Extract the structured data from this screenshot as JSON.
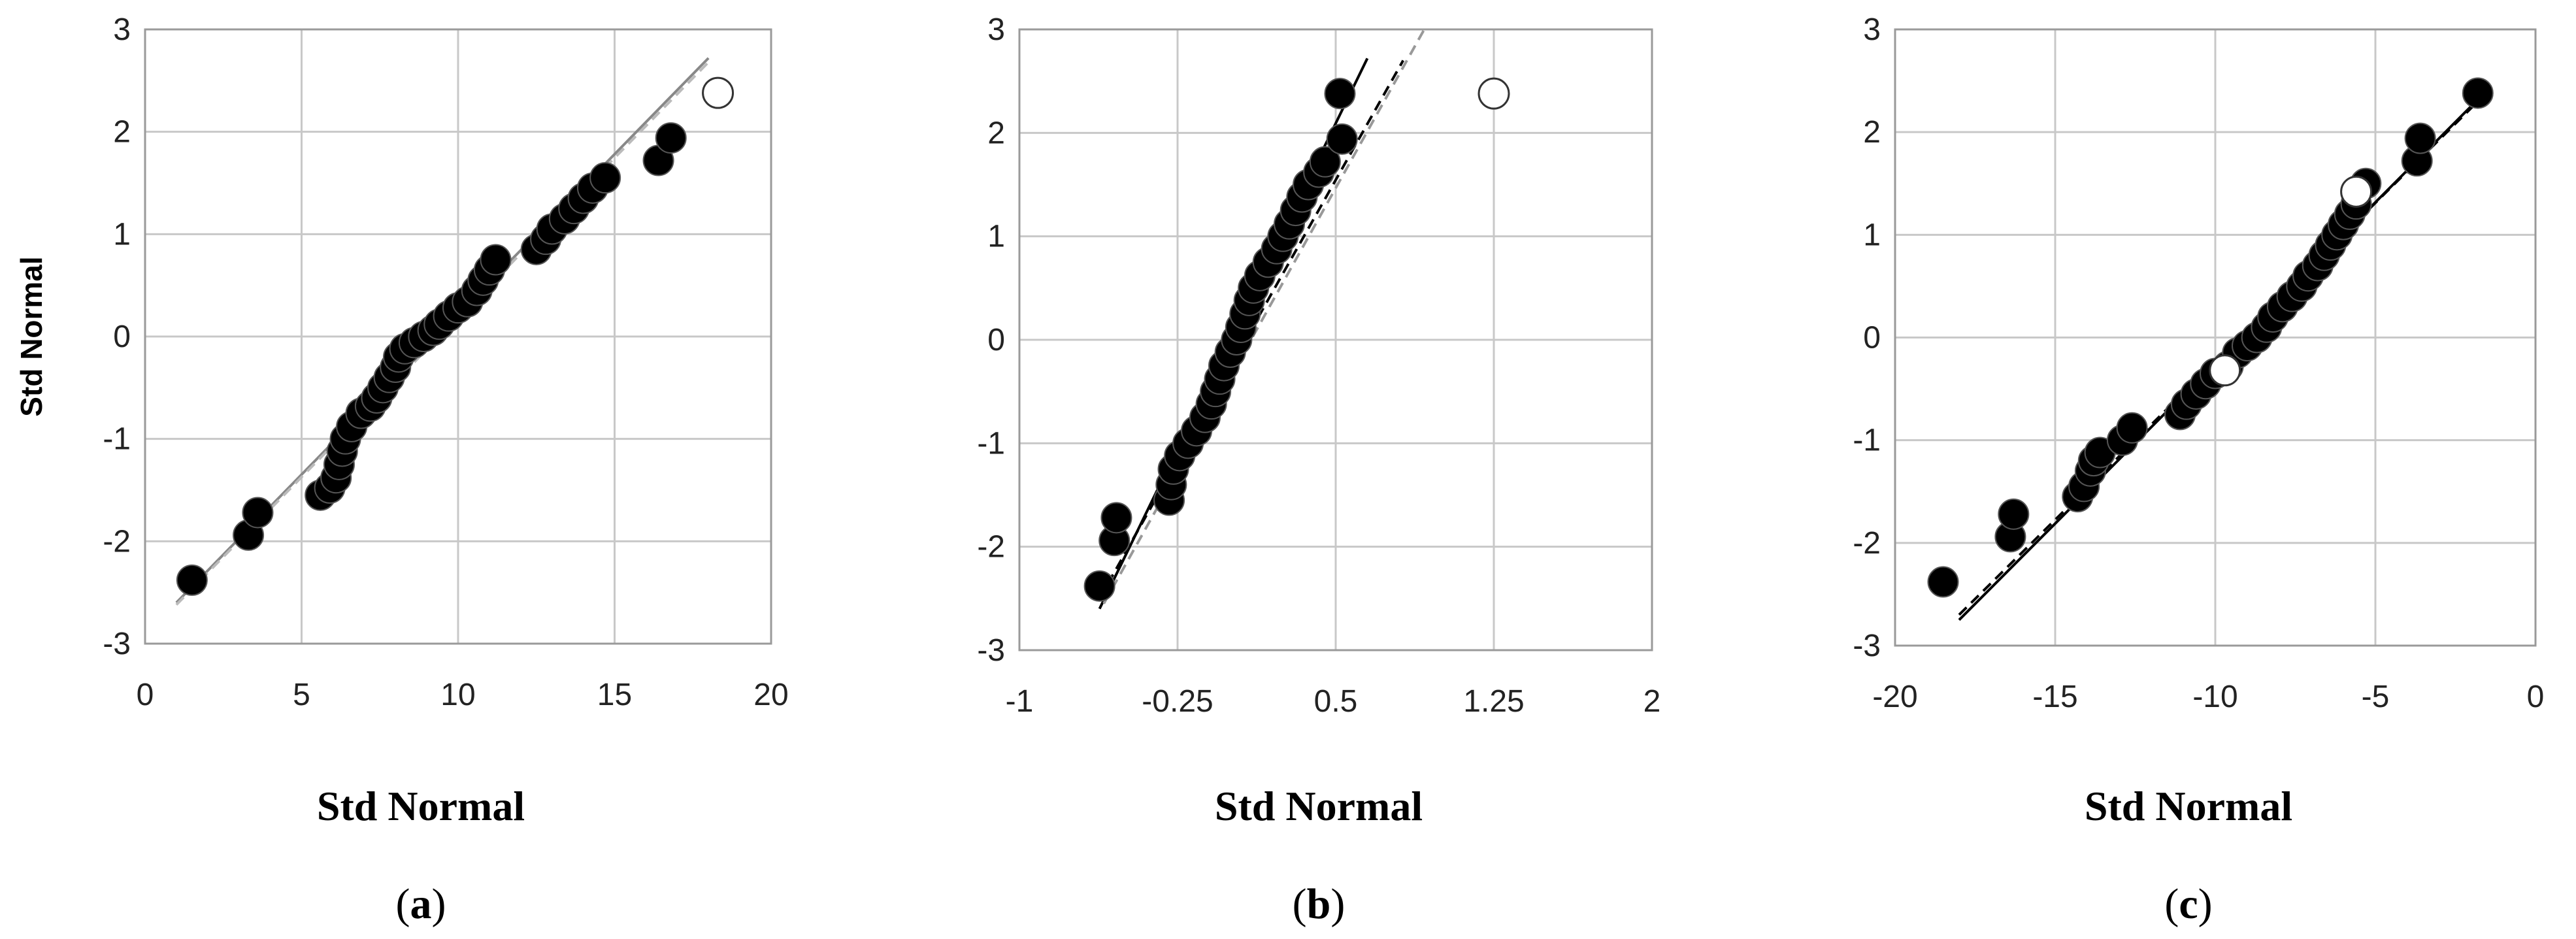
{
  "chart_data": [
    {
      "type": "scatter",
      "panel_label": "a",
      "xlabel": "Std Normal",
      "ylabel": "Std Normal",
      "xlim": [
        0,
        20
      ],
      "ylim": [
        -3,
        3
      ],
      "xticks": [
        "0",
        "5",
        "10",
        "15",
        "20"
      ],
      "yticks": [
        "-3",
        "-2",
        "-1",
        "0",
        "1",
        "2",
        "3"
      ],
      "grid": true,
      "points": [
        [
          1.5,
          -2.38
        ],
        [
          3.3,
          -1.94
        ],
        [
          3.6,
          -1.72
        ],
        [
          5.6,
          -1.55
        ],
        [
          5.9,
          -1.48
        ],
        [
          6.1,
          -1.38
        ],
        [
          6.2,
          -1.25
        ],
        [
          6.3,
          -1.12
        ],
        [
          6.4,
          -1.0
        ],
        [
          6.6,
          -0.88
        ],
        [
          6.9,
          -0.75
        ],
        [
          7.2,
          -0.68
        ],
        [
          7.4,
          -0.6
        ],
        [
          7.6,
          -0.5
        ],
        [
          7.8,
          -0.4
        ],
        [
          8.0,
          -0.3
        ],
        [
          8.1,
          -0.2
        ],
        [
          8.3,
          -0.12
        ],
        [
          8.6,
          -0.06
        ],
        [
          8.9,
          0.0
        ],
        [
          9.2,
          0.06
        ],
        [
          9.4,
          0.12
        ],
        [
          9.7,
          0.2
        ],
        [
          10.0,
          0.28
        ],
        [
          10.3,
          0.34
        ],
        [
          10.6,
          0.45
        ],
        [
          10.8,
          0.55
        ],
        [
          11.0,
          0.65
        ],
        [
          11.2,
          0.75
        ],
        [
          12.5,
          0.85
        ],
        [
          12.8,
          0.95
        ],
        [
          13.0,
          1.05
        ],
        [
          13.4,
          1.15
        ],
        [
          13.7,
          1.25
        ],
        [
          14.0,
          1.35
        ],
        [
          14.3,
          1.45
        ],
        [
          14.7,
          1.55
        ],
        [
          16.4,
          1.72
        ],
        [
          16.8,
          1.94
        ]
      ],
      "open_points": [
        [
          18.3,
          2.38
        ]
      ],
      "fit_lines": [
        {
          "style": "solid",
          "color": "#888888",
          "from": [
            1.0,
            -2.6
          ],
          "to": [
            18.0,
            2.72
          ]
        },
        {
          "style": "dashed",
          "color": "#bbbbbb",
          "from": [
            1.0,
            -2.62
          ],
          "to": [
            18.0,
            2.68
          ]
        }
      ]
    },
    {
      "type": "scatter",
      "panel_label": "b",
      "xlabel": "Std Normal",
      "ylabel": "",
      "xlim": [
        -1,
        2
      ],
      "ylim": [
        -3,
        3
      ],
      "xticks": [
        "-1",
        "-0.25",
        "0.5",
        "1.25",
        "2"
      ],
      "yticks": [
        "-3",
        "-2",
        "-1",
        "0",
        "1",
        "2",
        "3"
      ],
      "grid": true,
      "points": [
        [
          -0.62,
          -2.38
        ],
        [
          -0.55,
          -1.94
        ],
        [
          -0.54,
          -1.72
        ],
        [
          -0.29,
          -1.55
        ],
        [
          -0.28,
          -1.4
        ],
        [
          -0.27,
          -1.25
        ],
        [
          -0.24,
          -1.12
        ],
        [
          -0.2,
          -1.0
        ],
        [
          -0.16,
          -0.88
        ],
        [
          -0.12,
          -0.75
        ],
        [
          -0.09,
          -0.62
        ],
        [
          -0.07,
          -0.5
        ],
        [
          -0.05,
          -0.38
        ],
        [
          -0.03,
          -0.25
        ],
        [
          0.0,
          -0.12
        ],
        [
          0.03,
          0.0
        ],
        [
          0.05,
          0.12
        ],
        [
          0.07,
          0.25
        ],
        [
          0.09,
          0.38
        ],
        [
          0.11,
          0.5
        ],
        [
          0.14,
          0.62
        ],
        [
          0.18,
          0.75
        ],
        [
          0.22,
          0.88
        ],
        [
          0.25,
          1.0
        ],
        [
          0.28,
          1.12
        ],
        [
          0.31,
          1.25
        ],
        [
          0.34,
          1.38
        ],
        [
          0.37,
          1.5
        ],
        [
          0.42,
          1.62
        ],
        [
          0.45,
          1.72
        ],
        [
          0.53,
          1.94
        ],
        [
          0.52,
          2.38
        ]
      ],
      "open_points": [
        [
          1.25,
          2.38
        ]
      ],
      "fit_lines": [
        {
          "style": "solid",
          "color": "#000000",
          "from": [
            -0.62,
            -2.6
          ],
          "to": [
            0.65,
            2.72
          ]
        },
        {
          "style": "dashed",
          "color": "#000000",
          "from": [
            -0.62,
            -2.5
          ],
          "to": [
            0.82,
            2.7
          ]
        },
        {
          "style": "dashed",
          "color": "#999999",
          "from": [
            -0.6,
            -2.55
          ],
          "to": [
            0.92,
            3.0
          ]
        }
      ]
    },
    {
      "type": "scatter",
      "panel_label": "c",
      "xlabel": "Std Normal",
      "ylabel": "",
      "xlim": [
        -20,
        0
      ],
      "ylim": [
        -3,
        3
      ],
      "xticks": [
        "-20",
        "-15",
        "-10",
        "-5",
        "0"
      ],
      "yticks": [
        "-3",
        "-2",
        "-1",
        "0",
        "1",
        "2",
        "3"
      ],
      "grid": true,
      "points": [
        [
          -18.5,
          -2.38
        ],
        [
          -16.4,
          -1.94
        ],
        [
          -16.3,
          -1.72
        ],
        [
          -14.3,
          -1.55
        ],
        [
          -14.1,
          -1.45
        ],
        [
          -13.9,
          -1.3
        ],
        [
          -13.8,
          -1.2
        ],
        [
          -13.6,
          -1.12
        ],
        [
          -12.9,
          -1.0
        ],
        [
          -12.6,
          -0.88
        ],
        [
          -11.1,
          -0.75
        ],
        [
          -10.9,
          -0.65
        ],
        [
          -10.6,
          -0.55
        ],
        [
          -10.3,
          -0.45
        ],
        [
          -10.0,
          -0.35
        ],
        [
          -9.6,
          -0.28
        ],
        [
          -9.3,
          -0.15
        ],
        [
          -9.0,
          -0.08
        ],
        [
          -8.7,
          0.0
        ],
        [
          -8.4,
          0.1
        ],
        [
          -8.2,
          0.2
        ],
        [
          -7.9,
          0.3
        ],
        [
          -7.6,
          0.4
        ],
        [
          -7.3,
          0.5
        ],
        [
          -7.1,
          0.6
        ],
        [
          -6.8,
          0.7
        ],
        [
          -6.6,
          0.8
        ],
        [
          -6.4,
          0.9
        ],
        [
          -6.2,
          1.0
        ],
        [
          -6.0,
          1.1
        ],
        [
          -5.8,
          1.2
        ],
        [
          -5.6,
          1.3
        ],
        [
          -5.3,
          1.5
        ],
        [
          -3.7,
          1.72
        ],
        [
          -3.6,
          1.94
        ],
        [
          -1.8,
          2.38
        ]
      ],
      "open_points": [
        [
          -9.7,
          -0.32
        ],
        [
          -5.6,
          1.42
        ]
      ],
      "fit_lines": [
        {
          "style": "solid",
          "color": "#000000",
          "from": [
            -18.0,
            -2.75
          ],
          "to": [
            -1.6,
            2.38
          ]
        },
        {
          "style": "dashed",
          "color": "#000000",
          "from": [
            -18.0,
            -2.7
          ],
          "to": [
            -1.6,
            2.36
          ]
        }
      ]
    }
  ]
}
